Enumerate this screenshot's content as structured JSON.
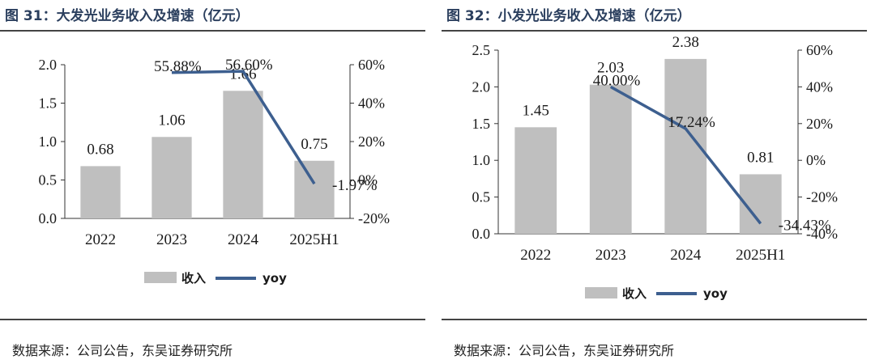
{
  "figures": [
    {
      "title": "图 31：大发光业务收入及增速（亿元）",
      "source": "数据来源：公司公告，东吴证券研究所",
      "legend": {
        "bar_label": "收入",
        "line_label": "yoy"
      },
      "colors": {
        "bar": "#bfbfbf",
        "line": "#3d5f8f",
        "text": "#1a1a1a",
        "title": "#2b3f5e"
      }
    },
    {
      "title": "图 32：小发光业务收入及增速（亿元）",
      "source": "数据来源：公司公告，东吴证券研究所",
      "legend": {
        "bar_label": "收入",
        "line_label": "yoy"
      },
      "colors": {
        "bar": "#bfbfbf",
        "line": "#3d5f8f",
        "text": "#1a1a1a",
        "title": "#2b3f5e"
      }
    }
  ],
  "chart_data": [
    {
      "type": "bar",
      "title": "图 31：大发光业务收入及增速（亿元）",
      "categories": [
        "2022",
        "2023",
        "2024",
        "2025H1"
      ],
      "series": [
        {
          "name": "收入",
          "type": "bar",
          "axis": "left",
          "values": [
            0.68,
            1.06,
            1.66,
            0.75
          ],
          "labels": [
            "0.68",
            "1.06",
            "1.66",
            "0.75"
          ]
        },
        {
          "name": "yoy",
          "type": "line",
          "axis": "right",
          "values": [
            null,
            55.88,
            56.6,
            -1.97
          ],
          "labels": [
            "",
            "55.88%",
            "56.60%",
            "-1.97%"
          ]
        }
      ],
      "y_left": {
        "min": 0,
        "max": 2.0,
        "ticks": [
          0,
          0.5,
          1.0,
          1.5,
          2.0
        ],
        "tick_labels": [
          "0.0",
          "0.5",
          "1.0",
          "1.5",
          "2.0"
        ]
      },
      "y_right": {
        "min": -20,
        "max": 60,
        "ticks": [
          -20,
          0,
          20,
          40,
          60
        ],
        "tick_labels": [
          "-20%",
          "0%",
          "20%",
          "40%",
          "60%"
        ]
      },
      "legend_position": "bottom-center",
      "grid": false
    },
    {
      "type": "bar",
      "title": "图 32：小发光业务收入及增速（亿元）",
      "categories": [
        "2022",
        "2023",
        "2024",
        "2025H1"
      ],
      "series": [
        {
          "name": "收入",
          "type": "bar",
          "axis": "left",
          "values": [
            1.45,
            2.03,
            2.38,
            0.81
          ],
          "labels": [
            "1.45",
            "2.03",
            "2.38",
            "0.81"
          ]
        },
        {
          "name": "yoy",
          "type": "line",
          "axis": "right",
          "values": [
            null,
            40.0,
            17.24,
            -34.43
          ],
          "labels": [
            "",
            "40.00%",
            "17.24%",
            "-34.43%"
          ]
        }
      ],
      "y_left": {
        "min": 0,
        "max": 2.5,
        "ticks": [
          0,
          0.5,
          1.0,
          1.5,
          2.0,
          2.5
        ],
        "tick_labels": [
          "0.0",
          "0.5",
          "1.0",
          "1.5",
          "2.0",
          "2.5"
        ]
      },
      "y_right": {
        "min": -40,
        "max": 60,
        "ticks": [
          -40,
          -20,
          0,
          20,
          40,
          60
        ],
        "tick_labels": [
          "-40%",
          "-20%",
          "0%",
          "20%",
          "40%",
          "60%"
        ]
      },
      "legend_position": "bottom-center",
      "grid": false
    }
  ]
}
